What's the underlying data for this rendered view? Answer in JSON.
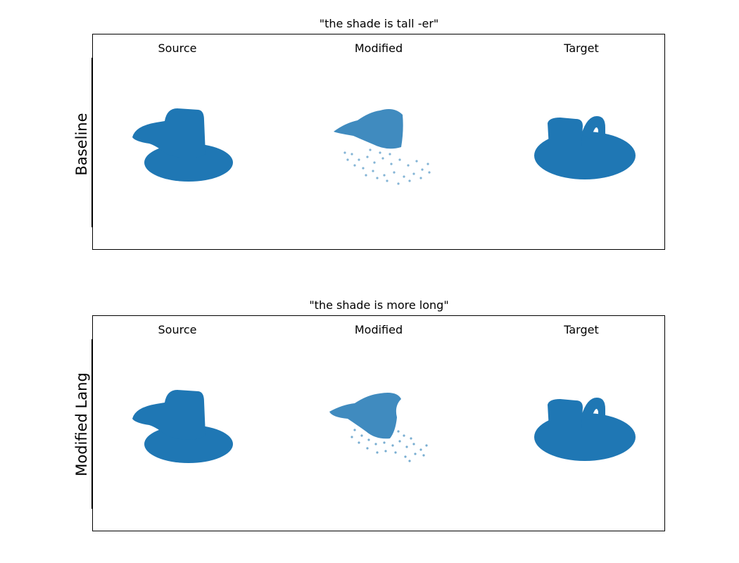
{
  "figure": {
    "panels": [
      {
        "title": "\"the shade is tall -er\"",
        "row_label": "Baseline",
        "columns": [
          "Source",
          "Modified",
          "Target"
        ]
      },
      {
        "title": "\"the shade is more long\"",
        "row_label": "Modified Lang",
        "columns": [
          "Source",
          "Modified",
          "Target"
        ]
      }
    ],
    "colors": {
      "points": "#1f77b4"
    },
    "icons": {
      "source": "hat-point-cloud",
      "modified": "scattered-hat-point-cloud",
      "target": "lamp-shade-point-cloud"
    }
  }
}
